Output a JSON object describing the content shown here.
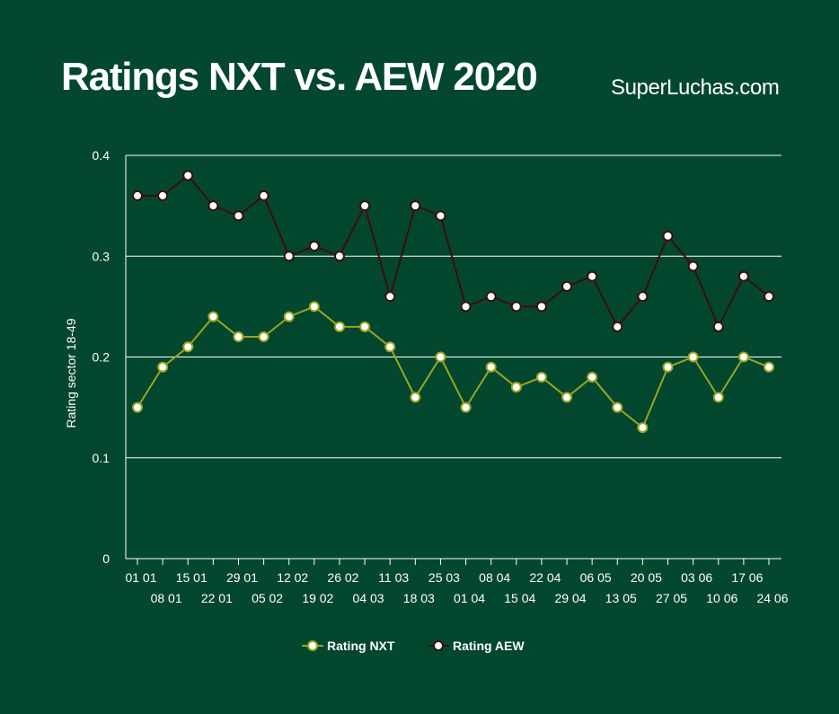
{
  "header": {
    "title": "Ratings NXT vs. AEW 2020",
    "brand": "SuperLuchas.com"
  },
  "colors": {
    "background": "#03472f",
    "nxt": "#9aa520",
    "aew": "#3d0d0d",
    "marker_fill": "#ffffff",
    "grid": "#ffffff"
  },
  "chart_data": {
    "type": "line",
    "title": "Ratings NXT vs. AEW 2020",
    "xlabel": "",
    "ylabel": "Rating sector 18-49",
    "ylim": [
      0,
      0.4
    ],
    "yticks": [
      "0",
      "0.1",
      "0.2",
      "0.3",
      "0.4"
    ],
    "grid": true,
    "legend_position": "bottom",
    "categories": [
      "01 01",
      "08 01",
      "15 01",
      "22 01",
      "29 01",
      "05 02",
      "12 02",
      "19 02",
      "26 02",
      "04 03",
      "11 03",
      "18 03",
      "25 03",
      "01 04",
      "08 04",
      "15 04",
      "22 04",
      "29 04",
      "06 05",
      "13 05",
      "20 05",
      "27 05",
      "03 06",
      "10 06",
      "17 06",
      "24 06"
    ],
    "series": [
      {
        "name": "Rating NXT",
        "values": [
          0.15,
          0.19,
          0.21,
          0.24,
          0.22,
          0.22,
          0.24,
          0.25,
          0.23,
          0.23,
          0.21,
          0.16,
          0.2,
          0.15,
          0.19,
          0.17,
          0.18,
          0.16,
          0.18,
          0.15,
          0.13,
          0.19,
          0.2,
          0.16,
          0.2,
          0.19
        ]
      },
      {
        "name": "Rating AEW",
        "values": [
          0.36,
          0.36,
          0.38,
          0.35,
          0.34,
          0.36,
          0.3,
          0.31,
          0.3,
          0.35,
          0.26,
          0.35,
          0.34,
          0.25,
          0.26,
          0.25,
          0.25,
          0.27,
          0.28,
          0.23,
          0.26,
          0.32,
          0.29,
          0.23,
          0.28,
          0.26
        ]
      }
    ]
  }
}
